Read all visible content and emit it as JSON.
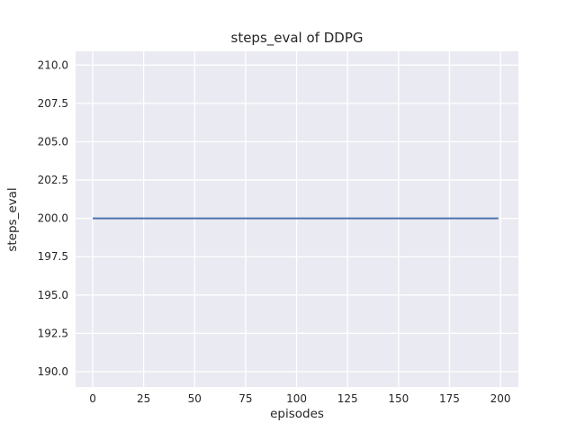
{
  "chart_data": {
    "type": "line",
    "title": "steps_eval of DDPG",
    "xlabel": "episodes",
    "ylabel": "steps_eval",
    "x_ticks": [
      "0",
      "25",
      "50",
      "75",
      "100",
      "125",
      "150",
      "175",
      "200"
    ],
    "y_ticks": [
      "190.0",
      "192.5",
      "195.0",
      "197.5",
      "200.0",
      "202.5",
      "205.0",
      "207.5",
      "210.0"
    ],
    "xlim": [
      -8.4,
      208.8
    ],
    "ylim": [
      189.0,
      210.9
    ],
    "grid": true,
    "legend": "none",
    "style": {
      "plot_background": "#EAEAF2",
      "gridline_color": "#FFFFFF",
      "text_color": "#262626"
    },
    "series": [
      {
        "name": "steps_eval",
        "color": "#4C72B0",
        "constant_value": 200,
        "x": [
          0,
          199
        ],
        "y": [
          200,
          200
        ]
      }
    ]
  }
}
